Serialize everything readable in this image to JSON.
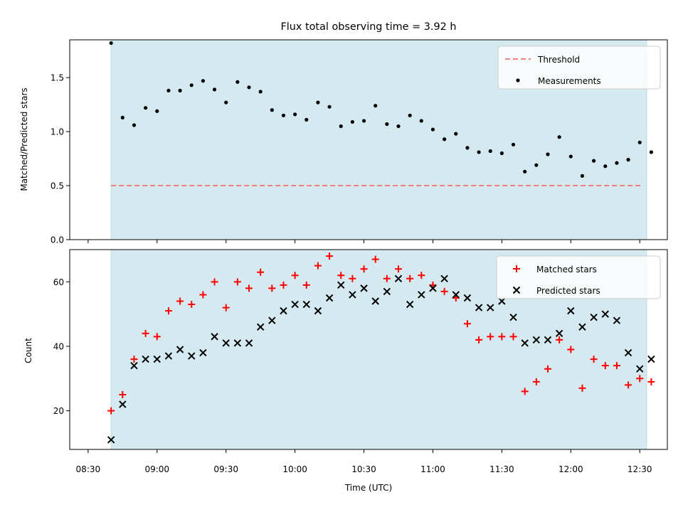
{
  "title": "Flux total observing time = 3.92 h",
  "colors": {
    "band": "#d4eaf0",
    "band_edge": "#b9dde0",
    "threshold": "#f08080",
    "measurements": "#000000",
    "matched": "#ff0000",
    "predicted": "#000000"
  },
  "chart_data": [
    {
      "type": "scatter",
      "ylabel": "Matched/Predicted stars",
      "ylim": [
        0.0,
        1.85
      ],
      "yticks": [
        "0.0",
        "0.5",
        "1.0",
        "1.5"
      ],
      "xlim": [
        "08:22",
        "12:42"
      ],
      "shaded_interval": [
        "08:40",
        "12:33"
      ],
      "legend": {
        "placement": "top-right",
        "entries": [
          "Threshold",
          "Measurements"
        ]
      },
      "threshold": {
        "name": "Threshold",
        "value": 0.5,
        "x_range": [
          "08:40",
          "12:31"
        ],
        "style": "dashed"
      },
      "series": [
        {
          "name": "Measurements",
          "marker": "dot",
          "points": [
            [
              "08:40",
              1.82
            ],
            [
              "08:45",
              1.13
            ],
            [
              "08:50",
              1.06
            ],
            [
              "08:55",
              1.22
            ],
            [
              "09:00",
              1.19
            ],
            [
              "09:05",
              1.38
            ],
            [
              "09:10",
              1.38
            ],
            [
              "09:15",
              1.43
            ],
            [
              "09:20",
              1.47
            ],
            [
              "09:25",
              1.39
            ],
            [
              "09:30",
              1.27
            ],
            [
              "09:35",
              1.46
            ],
            [
              "09:40",
              1.41
            ],
            [
              "09:45",
              1.37
            ],
            [
              "09:50",
              1.2
            ],
            [
              "09:55",
              1.15
            ],
            [
              "10:00",
              1.16
            ],
            [
              "10:05",
              1.11
            ],
            [
              "10:10",
              1.27
            ],
            [
              "10:15",
              1.23
            ],
            [
              "10:20",
              1.05
            ],
            [
              "10:25",
              1.09
            ],
            [
              "10:30",
              1.1
            ],
            [
              "10:35",
              1.24
            ],
            [
              "10:40",
              1.07
            ],
            [
              "10:45",
              1.05
            ],
            [
              "10:50",
              1.15
            ],
            [
              "10:55",
              1.1
            ],
            [
              "11:00",
              1.02
            ],
            [
              "11:05",
              0.93
            ],
            [
              "11:10",
              0.98
            ],
            [
              "11:15",
              0.85
            ],
            [
              "11:20",
              0.81
            ],
            [
              "11:25",
              0.82
            ],
            [
              "11:30",
              0.8
            ],
            [
              "11:35",
              0.88
            ],
            [
              "11:40",
              0.63
            ],
            [
              "11:45",
              0.69
            ],
            [
              "11:50",
              0.79
            ],
            [
              "11:55",
              0.95
            ],
            [
              "12:00",
              0.77
            ],
            [
              "12:05",
              0.59
            ],
            [
              "12:10",
              0.73
            ],
            [
              "12:15",
              0.68
            ],
            [
              "12:20",
              0.71
            ],
            [
              "12:25",
              0.74
            ],
            [
              "12:30",
              0.9
            ],
            [
              "12:35",
              0.81
            ]
          ]
        }
      ]
    },
    {
      "type": "scatter",
      "xlabel": "Time (UTC)",
      "ylabel": "Count",
      "ylim": [
        8,
        70
      ],
      "yticks": [
        "20",
        "40",
        "60"
      ],
      "xlim": [
        "08:22",
        "12:42"
      ],
      "xticks": [
        "08:30",
        "09:00",
        "09:30",
        "10:00",
        "10:30",
        "11:00",
        "11:30",
        "12:00",
        "12:30"
      ],
      "shaded_interval": [
        "08:40",
        "12:33"
      ],
      "legend": {
        "placement": "top-right",
        "entries": [
          "Matched stars",
          "Predicted stars"
        ]
      },
      "series": [
        {
          "name": "Matched stars",
          "marker": "plus",
          "points": [
            [
              "08:40",
              20
            ],
            [
              "08:45",
              25
            ],
            [
              "08:50",
              36
            ],
            [
              "08:55",
              44
            ],
            [
              "09:00",
              43
            ],
            [
              "09:05",
              51
            ],
            [
              "09:10",
              54
            ],
            [
              "09:15",
              53
            ],
            [
              "09:20",
              56
            ],
            [
              "09:25",
              60
            ],
            [
              "09:30",
              52
            ],
            [
              "09:35",
              60
            ],
            [
              "09:40",
              58
            ],
            [
              "09:45",
              63
            ],
            [
              "09:50",
              58
            ],
            [
              "09:55",
              59
            ],
            [
              "10:00",
              62
            ],
            [
              "10:05",
              59
            ],
            [
              "10:10",
              65
            ],
            [
              "10:15",
              68
            ],
            [
              "10:20",
              62
            ],
            [
              "10:25",
              61
            ],
            [
              "10:30",
              64
            ],
            [
              "10:35",
              67
            ],
            [
              "10:40",
              61
            ],
            [
              "10:45",
              64
            ],
            [
              "10:50",
              61
            ],
            [
              "10:55",
              62
            ],
            [
              "11:00",
              59
            ],
            [
              "11:05",
              57
            ],
            [
              "11:10",
              55
            ],
            [
              "11:15",
              47
            ],
            [
              "11:20",
              42
            ],
            [
              "11:25",
              43
            ],
            [
              "11:30",
              43
            ],
            [
              "11:35",
              43
            ],
            [
              "11:40",
              26
            ],
            [
              "11:45",
              29
            ],
            [
              "11:50",
              33
            ],
            [
              "11:55",
              42
            ],
            [
              "12:00",
              39
            ],
            [
              "12:05",
              27
            ],
            [
              "12:10",
              36
            ],
            [
              "12:15",
              34
            ],
            [
              "12:20",
              34
            ],
            [
              "12:25",
              28
            ],
            [
              "12:30",
              30
            ],
            [
              "12:35",
              29
            ]
          ]
        },
        {
          "name": "Predicted stars",
          "marker": "x",
          "points": [
            [
              "08:40",
              11
            ],
            [
              "08:45",
              22
            ],
            [
              "08:50",
              34
            ],
            [
              "08:55",
              36
            ],
            [
              "09:00",
              36
            ],
            [
              "09:05",
              37
            ],
            [
              "09:10",
              39
            ],
            [
              "09:15",
              37
            ],
            [
              "09:20",
              38
            ],
            [
              "09:25",
              43
            ],
            [
              "09:30",
              41
            ],
            [
              "09:35",
              41
            ],
            [
              "09:40",
              41
            ],
            [
              "09:45",
              46
            ],
            [
              "09:50",
              48
            ],
            [
              "09:55",
              51
            ],
            [
              "10:00",
              53
            ],
            [
              "10:05",
              53
            ],
            [
              "10:10",
              51
            ],
            [
              "10:15",
              55
            ],
            [
              "10:20",
              59
            ],
            [
              "10:25",
              56
            ],
            [
              "10:30",
              58
            ],
            [
              "10:35",
              54
            ],
            [
              "10:40",
              57
            ],
            [
              "10:45",
              61
            ],
            [
              "10:50",
              53
            ],
            [
              "10:55",
              56
            ],
            [
              "11:00",
              58
            ],
            [
              "11:05",
              61
            ],
            [
              "11:10",
              56
            ],
            [
              "11:15",
              55
            ],
            [
              "11:20",
              52
            ],
            [
              "11:25",
              52
            ],
            [
              "11:30",
              54
            ],
            [
              "11:35",
              49
            ],
            [
              "11:40",
              41
            ],
            [
              "11:45",
              42
            ],
            [
              "11:50",
              42
            ],
            [
              "11:55",
              44
            ],
            [
              "12:00",
              51
            ],
            [
              "12:05",
              46
            ],
            [
              "12:10",
              49
            ],
            [
              "12:15",
              50
            ],
            [
              "12:20",
              48
            ],
            [
              "12:25",
              38
            ],
            [
              "12:30",
              33
            ],
            [
              "12:35",
              36
            ]
          ]
        }
      ]
    }
  ]
}
